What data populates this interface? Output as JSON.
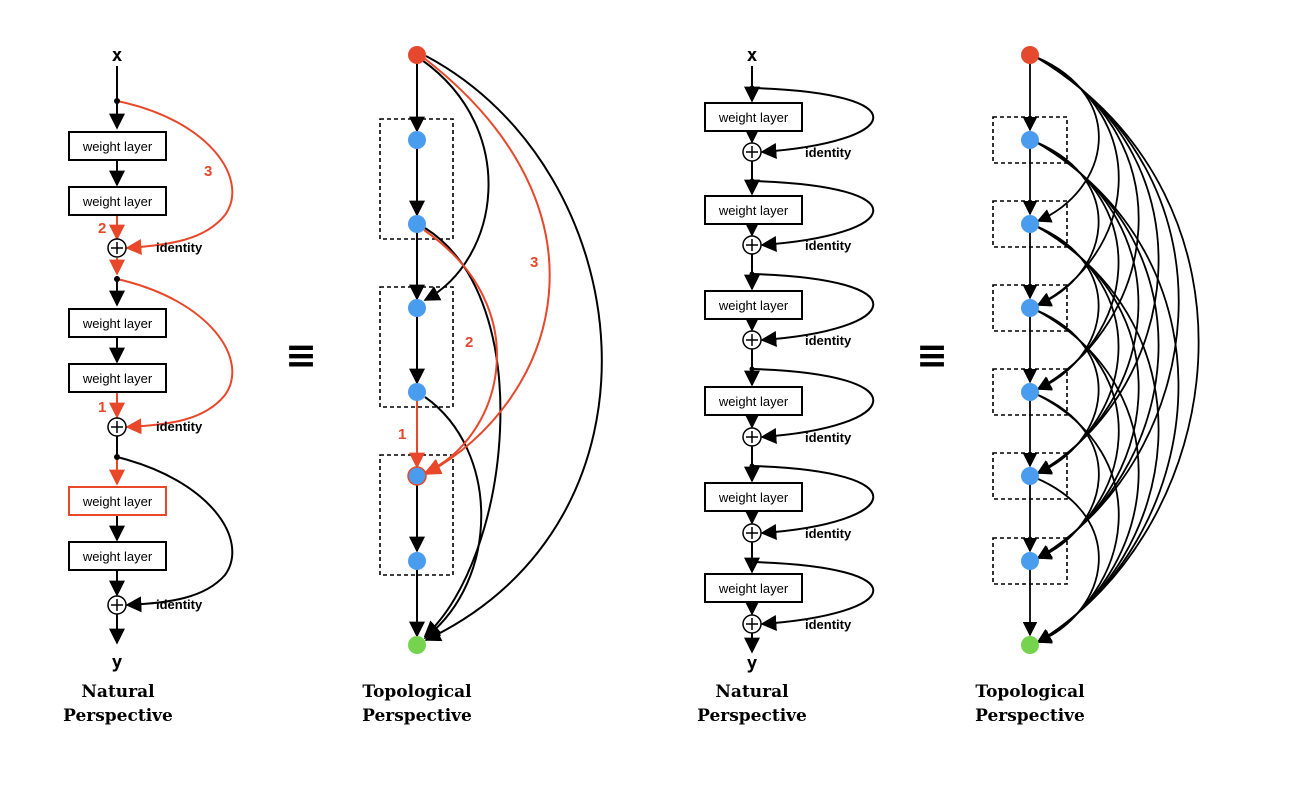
{
  "labels": {
    "weight_layer": "weight layer",
    "identity": "identity",
    "x": "x",
    "y": "y",
    "equiv": "≡",
    "num1": "1",
    "num2": "2",
    "num3": "3"
  },
  "captions": {
    "natural_line1": "Natural",
    "natural_line2": "Perspective",
    "topological_line1": "Topological",
    "topological_line2": "Perspective"
  },
  "colors": {
    "highlight": "#e8472a",
    "node_blue": "#4a9cee",
    "node_red": "#e64a2e",
    "node_green": "#76d34e",
    "line": "#000000"
  }
}
